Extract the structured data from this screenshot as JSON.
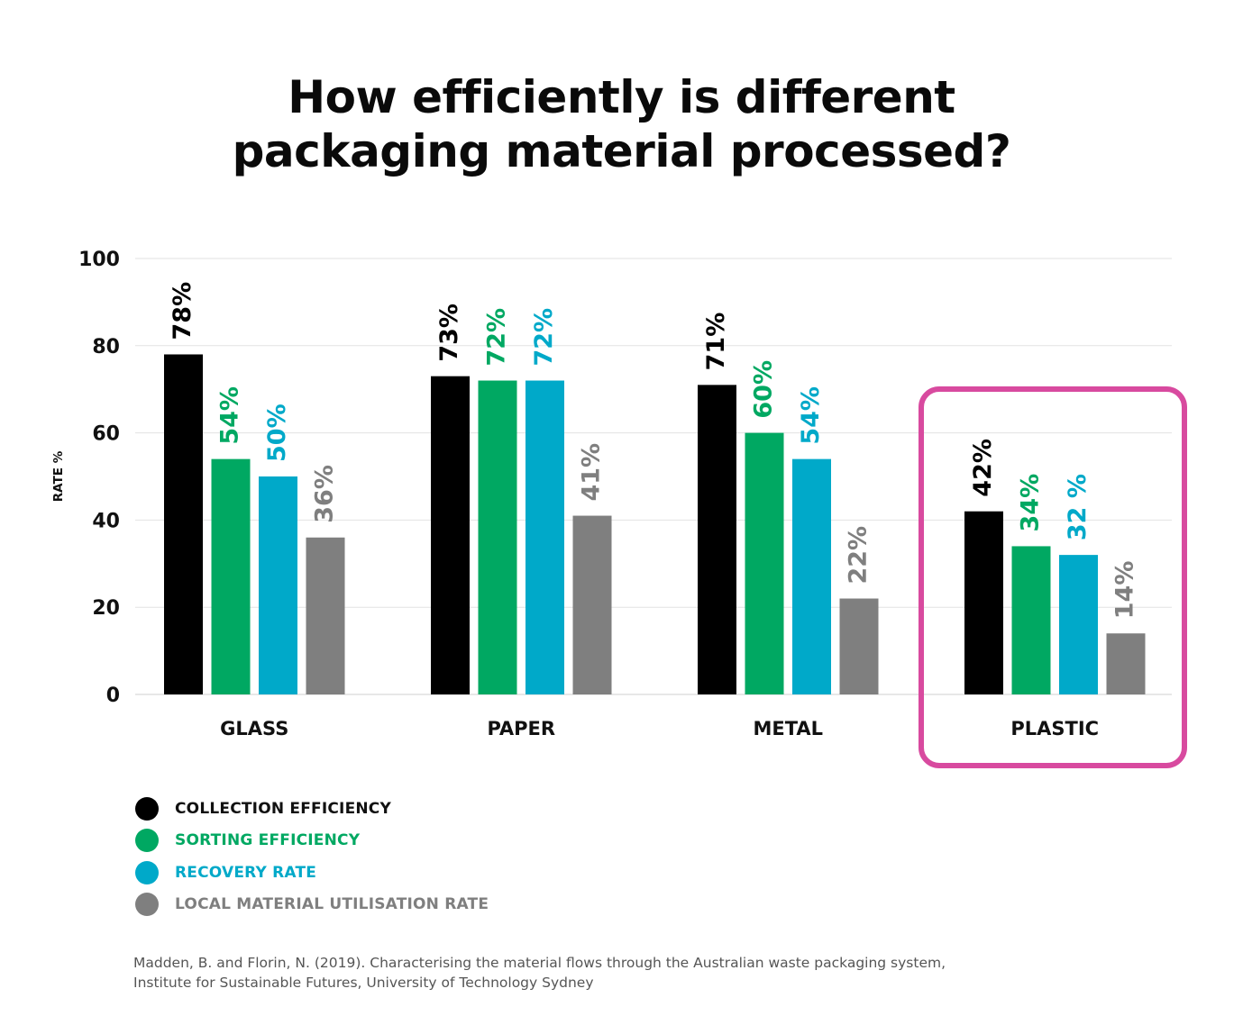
{
  "title_line1": "How efficiently is different",
  "title_line2": "packaging material processed?",
  "chart_data": {
    "type": "bar",
    "title": "How efficiently is different packaging material processed?",
    "ylabel": "RATE %",
    "xlabel": "",
    "ylim": [
      0,
      100
    ],
    "yticks": [
      0,
      20,
      40,
      60,
      80,
      100
    ],
    "grid": true,
    "categories": [
      "GLASS",
      "PAPER",
      "METAL",
      "PLASTIC"
    ],
    "series": [
      {
        "name": "COLLECTION EFFICIENCY",
        "color": "#000000",
        "values": [
          78,
          73,
          71,
          42
        ],
        "labels": [
          "78%",
          "73%",
          "71%",
          "42%"
        ]
      },
      {
        "name": "SORTING EFFICIENCY",
        "color": "#00a862",
        "values": [
          54,
          72,
          60,
          34
        ],
        "labels": [
          "54%",
          "72%",
          "60%",
          "34%"
        ]
      },
      {
        "name": "RECOVERY RATE",
        "color": "#00a9c9",
        "values": [
          50,
          72,
          54,
          32
        ],
        "labels": [
          "50%",
          "72%",
          "54%",
          "32 %"
        ]
      },
      {
        "name": "LOCAL MATERIAL UTILISATION RATE",
        "color": "#7f7f7f",
        "values": [
          36,
          41,
          22,
          14
        ],
        "labels": [
          "36%",
          "41%",
          "22%",
          "14%"
        ]
      }
    ],
    "highlight": {
      "category": "PLASTIC",
      "color": "#d84a9f"
    },
    "legend_position": "bottom-left"
  },
  "source_line1": "Madden, B. and Florin, N. (2019). Characterising the material flows through the Australian waste packaging system,",
  "source_line2": "Institute for Sustainable Futures, University of Technology Sydney"
}
